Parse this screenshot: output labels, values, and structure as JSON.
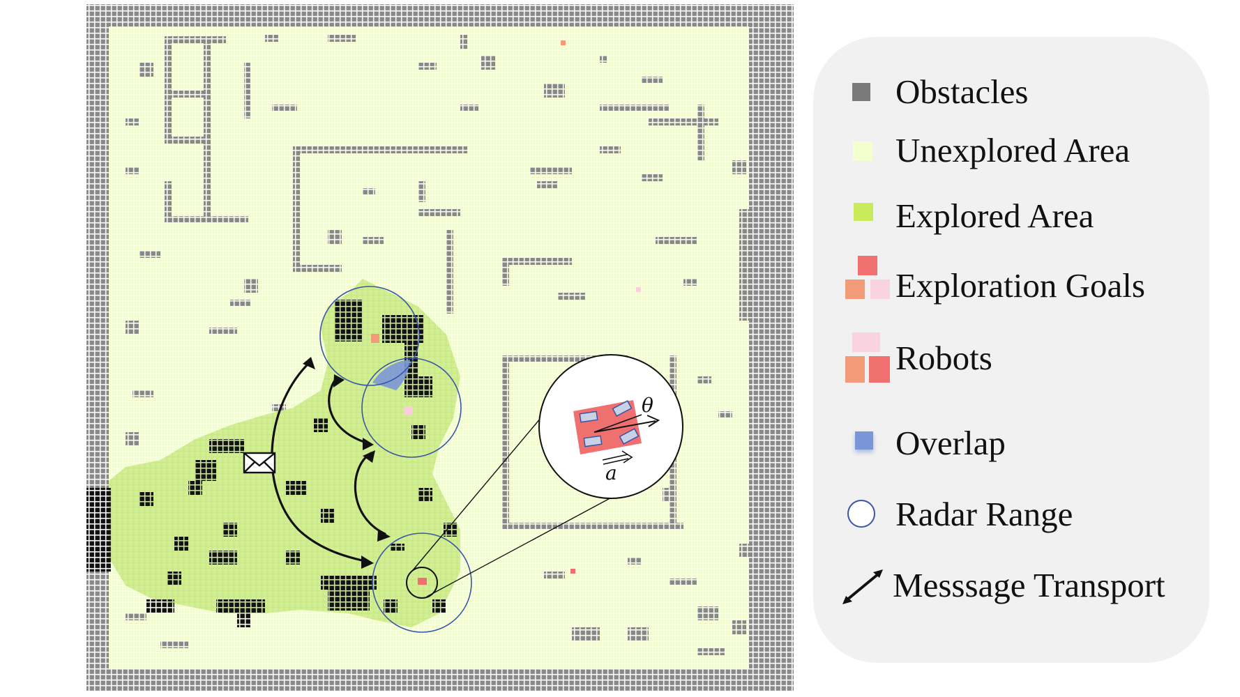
{
  "colors": {
    "obstacle": "#888888",
    "obstacle_known": "#111111",
    "unexplored": "#f4ffcf",
    "explored": "#c9ea82",
    "goal_red": "#f07070",
    "goal_orange": "#f39a79",
    "goal_pink": "#f9cfdc",
    "overlap": "#7b96d6",
    "radar_stroke": "#3a55a8",
    "legend_bg": "#f1f1f1"
  },
  "map": {
    "symbols": {
      "theta": "θ",
      "a": "a"
    },
    "icons": [
      "envelope-icon",
      "robot-detail-icon"
    ]
  },
  "legend": {
    "items": [
      {
        "key": "obstacles",
        "label": "Obstacles",
        "icon": "obstacle-swatch-icon"
      },
      {
        "key": "unexplored",
        "label": "Unexplored Area",
        "icon": "unexplored-swatch-icon"
      },
      {
        "key": "explored",
        "label": "Explored Area",
        "icon": "explored-swatch-icon"
      },
      {
        "key": "goals",
        "label": "Exploration Goals",
        "icon": "goals-swatch-icon"
      },
      {
        "key": "robots",
        "label": "Robots",
        "icon": "robots-swatch-icon"
      },
      {
        "key": "overlap",
        "label": "Overlap",
        "icon": "overlap-swatch-icon"
      },
      {
        "key": "radar",
        "label": "Radar Range",
        "icon": "radar-circle-icon"
      },
      {
        "key": "message",
        "label": "Messsage Transport",
        "icon": "double-arrow-icon"
      }
    ]
  }
}
